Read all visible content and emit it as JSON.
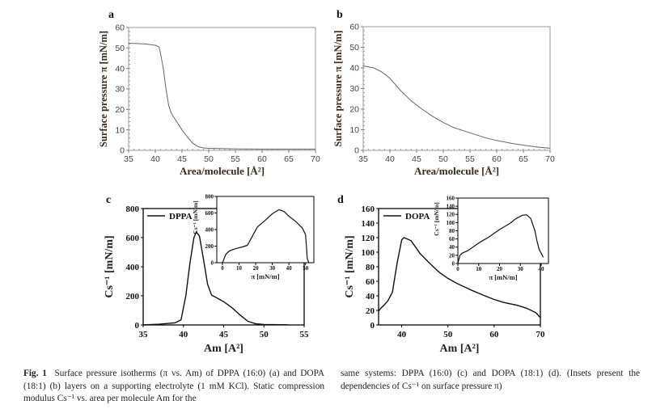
{
  "chart_data": [
    {
      "panel": "a",
      "type": "line",
      "xlabel": "Area/molecule [Å²]",
      "ylabel": "Surface pressure π [mN/m]",
      "xlim": [
        35,
        70
      ],
      "ylim": [
        0,
        60
      ],
      "xticks": [
        35,
        40,
        45,
        50,
        55,
        60,
        65,
        70
      ],
      "yticks": [
        0,
        10,
        20,
        30,
        40,
        50,
        60
      ],
      "grid": false,
      "series": [
        {
          "x": [
            35,
            38,
            40,
            40.7,
            41,
            41.5,
            42,
            42.5,
            43,
            44,
            45,
            46,
            47,
            48,
            49,
            50,
            52,
            55,
            60,
            70
          ],
          "y": [
            52.3,
            52,
            51.3,
            50.5,
            47,
            40,
            30,
            22,
            18,
            14,
            10,
            6.5,
            3.5,
            1.8,
            1.2,
            1,
            0.9,
            0.7,
            0.6,
            0.6
          ]
        }
      ]
    },
    {
      "panel": "b",
      "type": "line",
      "xlabel": "Area/molecule [Å²]",
      "ylabel": "Surface pressure π [mN/m]",
      "xlim": [
        35,
        70
      ],
      "ylim": [
        0,
        60
      ],
      "xticks": [
        35,
        40,
        45,
        50,
        55,
        60,
        65,
        70
      ],
      "yticks": [
        0,
        10,
        20,
        30,
        40,
        50,
        60
      ],
      "grid": false,
      "series": [
        {
          "x": [
            35,
            37,
            38.5,
            40,
            42,
            44,
            46,
            48,
            50,
            52,
            55,
            58,
            60,
            63,
            65,
            68,
            70
          ],
          "y": [
            41,
            40,
            38,
            35,
            29,
            24,
            20,
            16.5,
            13.5,
            11,
            8.5,
            6,
            4.8,
            3.3,
            2.5,
            1.5,
            1
          ]
        }
      ]
    },
    {
      "panel": "c",
      "type": "line",
      "xlabel": "Am [A²]",
      "ylabel": "Cs⁻¹ [mN/m]",
      "xlim": [
        35,
        55
      ],
      "ylim": [
        0,
        800
      ],
      "xticks": [
        35,
        40,
        45,
        50,
        55
      ],
      "yticks": [
        0,
        200,
        400,
        600,
        800
      ],
      "legend": "top-left",
      "grid": false,
      "series": [
        {
          "name": "DPPA",
          "x": [
            35,
            37,
            39,
            39.7,
            40.3,
            40.8,
            41.3,
            41.6,
            42,
            42.5,
            43,
            43.5,
            44,
            45,
            46,
            47,
            48,
            49,
            50,
            53
          ],
          "y": [
            0,
            5,
            15,
            35,
            200,
            420,
            600,
            640,
            610,
            450,
            280,
            205,
            190,
            160,
            120,
            70,
            25,
            8,
            3,
            1
          ]
        }
      ],
      "inset": {
        "xlabel": "π [mN/m]",
        "ylabel": "Cs⁻¹ [mN/m]",
        "xlim": [
          0,
          55
        ],
        "ylim": [
          0,
          800
        ],
        "xticks": [
          0,
          10,
          20,
          30,
          40,
          50
        ],
        "yticks": [
          0,
          200,
          400,
          600,
          800
        ],
        "series": [
          {
            "x": [
              0,
              1,
              2,
              4,
              8,
              12,
              15,
              18,
              21,
              25,
              30,
              34,
              37,
              40,
              44,
              48,
              50,
              50.5,
              51,
              52
            ],
            "y": [
              0,
              50,
              100,
              140,
              170,
              190,
              210,
              320,
              430,
              500,
              590,
              640,
              620,
              560,
              500,
              420,
              340,
              200,
              50,
              0
            ]
          }
        ]
      }
    },
    {
      "panel": "d",
      "type": "line",
      "xlabel": "Am [A²]",
      "ylabel": "Cs⁻¹ [mN/m]",
      "xlim": [
        35,
        70
      ],
      "ylim": [
        0,
        160
      ],
      "xticks": [
        40,
        50,
        60,
        70
      ],
      "yticks": [
        0,
        20,
        40,
        60,
        80,
        100,
        120,
        140,
        160
      ],
      "legend": "top-left",
      "grid": false,
      "series": [
        {
          "name": "DOPA",
          "x": [
            35,
            35.5,
            36,
            37,
            38,
            39,
            40,
            40.5,
            42,
            44,
            46,
            48,
            50,
            52,
            55,
            58,
            60,
            62,
            65,
            67,
            69,
            70
          ],
          "y": [
            19,
            23,
            26,
            33,
            45,
            85,
            117,
            120,
            116,
            98,
            85,
            73,
            64,
            57,
            48,
            40,
            35,
            31,
            27,
            23,
            17,
            10
          ]
        }
      ],
      "inset": {
        "xlabel": "π [mN/m]",
        "ylabel": "Cs⁻¹ [mN/m]",
        "xlim": [
          0,
          43.5
        ],
        "ylim": [
          0,
          160
        ],
        "xticks": [
          0,
          10,
          20,
          30,
          40
        ],
        "yticks": [
          0,
          20,
          40,
          60,
          80,
          100,
          120,
          140,
          160
        ],
        "series": [
          {
            "x": [
              0,
              0.5,
              1,
              2,
              5,
              10,
              15,
              20,
              25,
              28,
              31,
              33,
              35,
              37,
              38,
              39,
              40,
              41
            ],
            "y": [
              0,
              10,
              20,
              25,
              32,
              50,
              65,
              83,
              98,
              110,
              118,
              119,
              110,
              80,
              55,
              35,
              25,
              15
            ]
          }
        ]
      }
    }
  ],
  "caption": {
    "label": "Fig. 1",
    "left": "Surface pressure isotherms (π vs. Am) of DPPA (16:0) (a) and DOPA (18:1) (b) layers on a supporting electrolyte (1 mM KCl). Static compression modulus Cs⁻¹ vs. area per molecule Am for the",
    "right": "same systems: DPPA (16:0) (c) and DOPA (18:1) (d). (Insets present the dependencies of Cs⁻¹ on surface pressure π)"
  }
}
